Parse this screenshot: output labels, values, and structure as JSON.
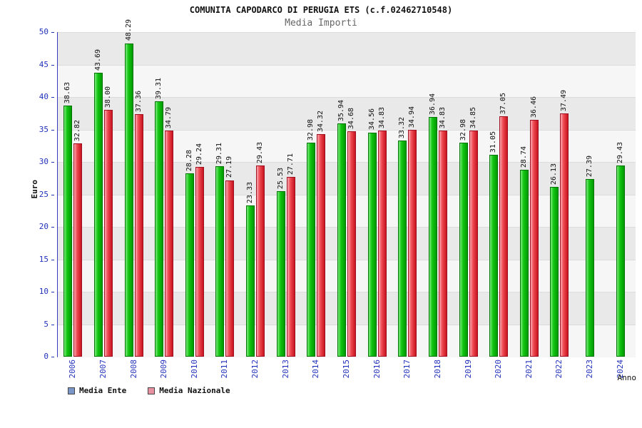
{
  "header": {
    "title": "COMUNITA CAPODARCO DI PERUGIA ETS (c.f.02462710548)",
    "subtitle": "Media Importi"
  },
  "axes": {
    "y_label": "Euro",
    "x_label": "Anno",
    "y_ticks": [
      0,
      5,
      10,
      15,
      20,
      25,
      30,
      35,
      40,
      45,
      50
    ]
  },
  "legend": {
    "items": [
      {
        "label": "Media Ente",
        "swatch_color": "#7a96c8"
      },
      {
        "label": "Media Nazionale",
        "swatch_color": "#e891a0"
      }
    ]
  },
  "colors": {
    "bar_green_light": "#7dec7d",
    "bar_green": "#13c513",
    "bar_green_dark": "#009a00",
    "bar_green_border": "#007300",
    "bar_red_light": "#f9aab2",
    "bar_red": "#ef4a52",
    "bar_red_dark": "#c81420",
    "bar_red_border": "#a01020",
    "tick_text": "#2233bb",
    "band_dark": "#e9e9e9",
    "band_light": "#f6f6f6"
  },
  "chart_data": {
    "type": "bar",
    "title": "Media Importi",
    "categories": [
      "2006",
      "2007",
      "2008",
      "2009",
      "2010",
      "2011",
      "2012",
      "2013",
      "2014",
      "2015",
      "2016",
      "2017",
      "2018",
      "2019",
      "2020",
      "2021",
      "2022",
      "2023",
      "2024"
    ],
    "series": [
      {
        "name": "Media Ente",
        "values": [
          38.63,
          43.69,
          48.29,
          39.31,
          28.28,
          29.31,
          23.33,
          25.53,
          32.98,
          35.94,
          34.56,
          33.32,
          36.94,
          32.98,
          31.05,
          28.74,
          26.13,
          27.39,
          29.43
        ]
      },
      {
        "name": "Media Nazionale",
        "values": [
          32.82,
          38.0,
          37.36,
          34.79,
          29.24,
          27.19,
          29.43,
          27.71,
          34.32,
          34.68,
          34.83,
          34.94,
          34.83,
          34.85,
          37.05,
          36.46,
          37.49,
          null,
          null
        ]
      }
    ],
    "xlabel": "Anno",
    "ylabel": "Euro",
    "ylim": [
      0,
      50
    ],
    "ytick_step": 5,
    "grid": "horizontal-bands",
    "legend_position": "bottom-left",
    "value_labels": true
  }
}
